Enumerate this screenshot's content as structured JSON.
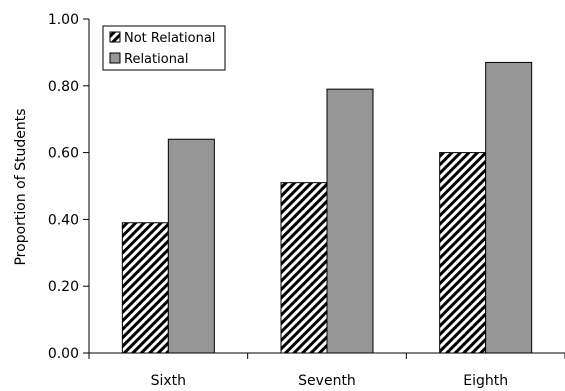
{
  "chart_data": {
    "type": "bar",
    "title": "",
    "xlabel": "",
    "ylabel": "Proportion of Students",
    "ylim": [
      0,
      1
    ],
    "yticks": [
      "0.00",
      "0.20",
      "0.40",
      "0.60",
      "0.80",
      "1.00"
    ],
    "ytick_values": [
      0,
      0.2,
      0.4,
      0.6,
      0.8,
      1.0
    ],
    "categories": [
      "Sixth",
      "Seventh",
      "Eighth"
    ],
    "series": [
      {
        "name": "Not Relational",
        "values": [
          0.39,
          0.51,
          0.6
        ],
        "pattern": "diagonal-hatch",
        "color": "#000000"
      },
      {
        "name": "Relational",
        "values": [
          0.64,
          0.79,
          0.87
        ],
        "color": "#969696"
      }
    ],
    "legend_position": "top-left",
    "grid": false
  }
}
